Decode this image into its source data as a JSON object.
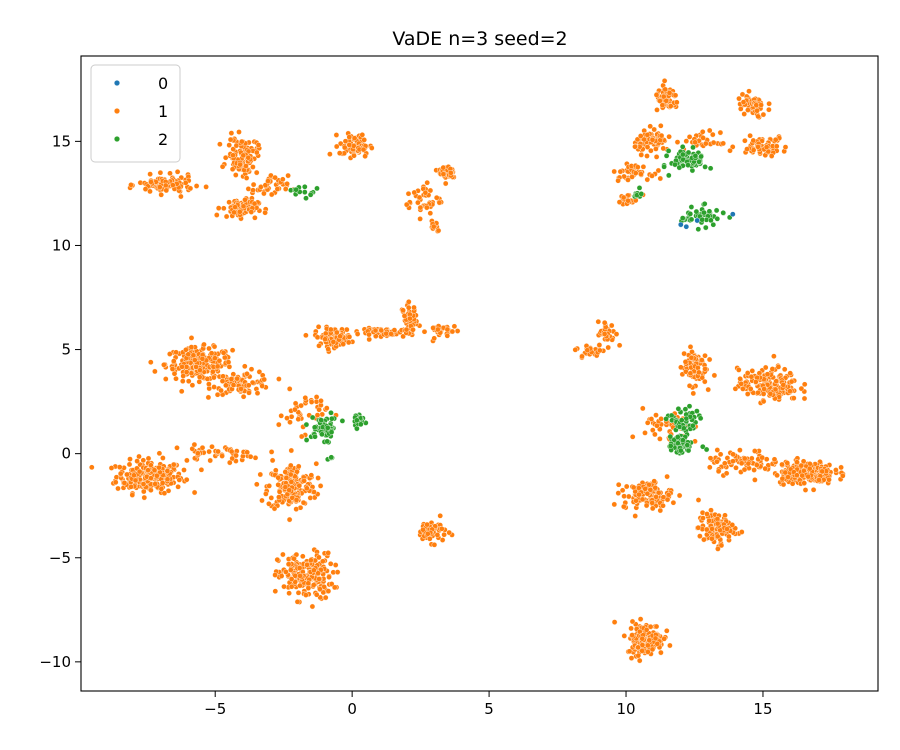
{
  "chart_data": {
    "type": "scatter",
    "title": "VaDE n=3 seed=2",
    "xlabel": "",
    "ylabel": "",
    "xlim": [
      -9.9,
      19.2
    ],
    "ylim": [
      -11.4,
      19.1
    ],
    "xticks": [
      -5,
      0,
      5,
      10,
      15
    ],
    "xtick_labels": [
      "−5",
      "0",
      "5",
      "10",
      "15"
    ],
    "yticks": [
      -10,
      -5,
      0,
      5,
      10,
      15
    ],
    "ytick_labels": [
      "−10",
      "−5",
      "0",
      "5",
      "10",
      "15"
    ],
    "grid": false,
    "legend_position": "top-left",
    "series": [
      {
        "name": "0",
        "color": "#1f77b4",
        "points": [
          [
            12.0,
            11.0
          ],
          [
            12.2,
            10.9
          ],
          [
            13.9,
            11.5
          ],
          [
            12.6,
            11.2
          ]
        ]
      },
      {
        "name": "1",
        "color": "#ff7f0e",
        "clusters": [
          {
            "center": [
              -7.4,
              -1.1
            ],
            "spread": [
              1.1,
              0.7
            ],
            "n": 220
          },
          {
            "center": [
              -5.6,
              4.3
            ],
            "spread": [
              1.1,
              0.7
            ],
            "n": 220
          },
          {
            "center": [
              -4.0,
              3.4
            ],
            "spread": [
              1.0,
              0.5
            ],
            "n": 80
          },
          {
            "center": [
              -5.0,
              0.0
            ],
            "spread": [
              1.6,
              0.35
            ],
            "n": 50
          },
          {
            "center": [
              -2.2,
              -1.6
            ],
            "spread": [
              0.8,
              1.0
            ],
            "n": 170
          },
          {
            "center": [
              -1.7,
              -5.9
            ],
            "spread": [
              0.9,
              1.0
            ],
            "n": 200
          },
          {
            "center": [
              -0.7,
              5.6
            ],
            "spread": [
              0.6,
              0.4
            ],
            "n": 90
          },
          {
            "center": [
              1.3,
              5.8
            ],
            "spread": [
              0.9,
              0.2
            ],
            "n": 50
          },
          {
            "center": [
              2.1,
              6.5
            ],
            "spread": [
              0.25,
              0.6
            ],
            "n": 50
          },
          {
            "center": [
              3.3,
              5.9
            ],
            "spread": [
              0.5,
              0.3
            ],
            "n": 30
          },
          {
            "center": [
              -1.8,
              2.0
            ],
            "spread": [
              0.8,
              0.9
            ],
            "n": 40
          },
          {
            "center": [
              2.9,
              -3.7
            ],
            "spread": [
              0.5,
              0.5
            ],
            "n": 55
          },
          {
            "center": [
              -6.8,
              12.9
            ],
            "spread": [
              0.9,
              0.4
            ],
            "n": 100
          },
          {
            "center": [
              -4.0,
              14.3
            ],
            "spread": [
              0.5,
              0.8
            ],
            "n": 100
          },
          {
            "center": [
              -4.1,
              11.8
            ],
            "spread": [
              0.6,
              0.4
            ],
            "n": 80
          },
          {
            "center": [
              -3.0,
              12.8
            ],
            "spread": [
              0.6,
              0.5
            ],
            "n": 40
          },
          {
            "center": [
              0.1,
              14.8
            ],
            "spread": [
              0.5,
              0.5
            ],
            "n": 70
          },
          {
            "center": [
              2.6,
              12.2
            ],
            "spread": [
              0.6,
              0.7
            ],
            "n": 40
          },
          {
            "center": [
              3.5,
              13.5
            ],
            "spread": [
              0.3,
              0.4
            ],
            "n": 30
          },
          {
            "center": [
              3.0,
              11.0
            ],
            "spread": [
              0.2,
              0.3
            ],
            "n": 12
          },
          {
            "center": [
              8.7,
              4.9
            ],
            "spread": [
              0.5,
              0.3
            ],
            "n": 25
          },
          {
            "center": [
              9.3,
              5.8
            ],
            "spread": [
              0.3,
              0.5
            ],
            "n": 40
          },
          {
            "center": [
              10.7,
              -8.9
            ],
            "spread": [
              0.6,
              0.7
            ],
            "n": 160
          },
          {
            "center": [
              10.8,
              -2.0
            ],
            "spread": [
              0.8,
              0.6
            ],
            "n": 110
          },
          {
            "center": [
              13.3,
              -3.6
            ],
            "spread": [
              0.6,
              0.7
            ],
            "n": 110
          },
          {
            "center": [
              12.5,
              4.2
            ],
            "spread": [
              0.4,
              0.8
            ],
            "n": 90
          },
          {
            "center": [
              15.2,
              3.3
            ],
            "spread": [
              1.0,
              0.7
            ],
            "n": 170
          },
          {
            "center": [
              16.5,
              -0.9
            ],
            "spread": [
              1.0,
              0.5
            ],
            "n": 210
          },
          {
            "center": [
              14.3,
              -0.4
            ],
            "spread": [
              1.2,
              0.5
            ],
            "n": 70
          },
          {
            "center": [
              11.5,
              1.2
            ],
            "spread": [
              0.8,
              0.8
            ],
            "n": 40
          },
          {
            "center": [
              11.0,
              15.0
            ],
            "spread": [
              0.6,
              0.5
            ],
            "n": 70
          },
          {
            "center": [
              11.5,
              17.0
            ],
            "spread": [
              0.4,
              0.5
            ],
            "n": 60
          },
          {
            "center": [
              14.6,
              16.7
            ],
            "spread": [
              0.5,
              0.5
            ],
            "n": 60
          },
          {
            "center": [
              15.0,
              14.8
            ],
            "spread": [
              0.8,
              0.4
            ],
            "n": 70
          },
          {
            "center": [
              10.2,
              13.5
            ],
            "spread": [
              0.6,
              0.3
            ],
            "n": 40
          },
          {
            "center": [
              10.1,
              12.2
            ],
            "spread": [
              0.4,
              0.2
            ],
            "n": 20
          },
          {
            "center": [
              12.8,
              15.0
            ],
            "spread": [
              0.6,
              0.4
            ],
            "n": 30
          }
        ]
      },
      {
        "name": "2",
        "color": "#2ca02c",
        "clusters": [
          {
            "center": [
              -1.0,
              1.2
            ],
            "spread": [
              0.5,
              0.5
            ],
            "n": 60
          },
          {
            "center": [
              0.2,
              1.6
            ],
            "spread": [
              0.2,
              0.3
            ],
            "n": 25
          },
          {
            "center": [
              -0.8,
              -0.3
            ],
            "spread": [
              0.15,
              0.15
            ],
            "n": 4
          },
          {
            "center": [
              12.1,
              1.5
            ],
            "spread": [
              0.5,
              0.7
            ],
            "n": 55
          },
          {
            "center": [
              12.0,
              0.4
            ],
            "spread": [
              0.4,
              0.4
            ],
            "n": 50
          },
          {
            "center": [
              12.3,
              14.1
            ],
            "spread": [
              0.6,
              0.5
            ],
            "n": 80
          },
          {
            "center": [
              12.8,
              11.4
            ],
            "spread": [
              0.7,
              0.4
            ],
            "n": 45
          },
          {
            "center": [
              10.4,
              12.4
            ],
            "spread": [
              0.15,
              0.3
            ],
            "n": 8
          },
          {
            "center": [
              -1.8,
              12.6
            ],
            "spread": [
              0.5,
              0.25
            ],
            "n": 14
          }
        ]
      }
    ]
  }
}
